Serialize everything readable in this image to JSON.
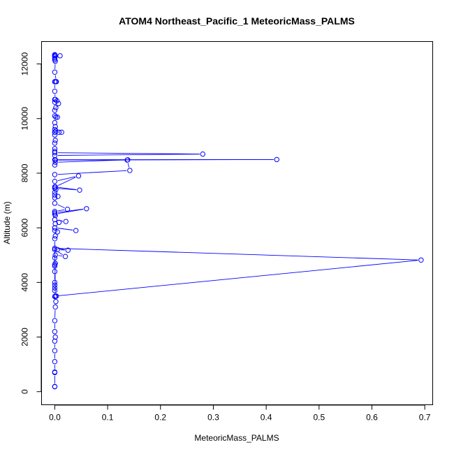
{
  "chart_data": {
    "type": "line",
    "title": "ATOM4 Northeast_Pacific_1 MeteoricMass_PALMS",
    "xlabel": "MeteoricMass_PALMS",
    "ylabel": "Altitude (m)",
    "xlim": [
      -0.025,
      0.715
    ],
    "ylim": [
      -480,
      12820
    ],
    "xticks": [
      0,
      0.1,
      0.2,
      0.3,
      0.4,
      0.5,
      0.6,
      0.7
    ],
    "xtick_labels": [
      "0.0",
      "0.1",
      "0.2",
      "0.3",
      "0.4",
      "0.5",
      "0.6",
      "0.7"
    ],
    "yticks": [
      0,
      2000,
      4000,
      6000,
      8000,
      10000,
      12000
    ],
    "ytick_labels": [
      "0",
      "2000",
      "4000",
      "6000",
      "8000",
      "10000",
      "12000"
    ],
    "color": "#0000ff",
    "marker": "open-circle",
    "grid": false,
    "legend": "none",
    "series": [
      {
        "x": [
          0.0,
          0.0,
          0.0,
          0.0,
          0.0,
          0.0,
          0.0,
          0.001,
          0.0,
          0.0,
          0.001,
          0.002,
          0.0,
          0.001,
          0.003,
          0.0,
          0.0,
          0.0,
          0.0,
          0.0,
          0.0,
          0.0,
          0.001,
          0.0,
          0.001,
          0.02,
          0.0,
          0.005,
          0.025,
          0.0,
          0.693,
          0.001,
          0.0,
          0.001,
          0.005,
          0.0,
          0.0,
          0.04,
          0.0,
          0.001,
          0.008,
          0.021,
          0.0,
          0.001,
          0.0,
          0.06,
          0.0,
          0.0,
          0.024,
          0.0,
          0.0,
          0.006,
          0.0,
          0.0,
          0.002,
          0.0,
          0.047,
          0.0,
          0.001,
          0.045,
          0.0,
          0.0,
          0.142,
          0.137,
          0.0,
          0.001,
          0.42,
          0.001,
          0.138,
          0.001,
          0.0,
          0.0,
          0.28,
          0.0,
          0.0,
          0.0,
          0.0,
          0.001,
          0.0,
          0.0,
          0.013,
          0.0,
          0.002,
          0.008,
          0.0,
          0.001,
          0.0,
          0.002,
          0.0,
          0.005,
          0.0,
          0.007,
          0.002,
          0.0,
          0.004,
          0.0,
          0.001,
          0.0,
          0.0,
          0.002,
          0.0,
          0.003,
          0.0,
          0.001,
          0.0,
          0.0,
          0.0,
          0.0,
          0.001,
          0.0,
          0.0,
          0.01,
          0.0,
          0.0
        ],
        "y": [
          180,
          190,
          700,
          720,
          1100,
          1500,
          1850,
          2000,
          2200,
          2600,
          3100,
          3300,
          3480,
          3500,
          3500,
          3700,
          3800,
          3900,
          4000,
          4400,
          4600,
          4650,
          4700,
          4900,
          5000,
          4950,
          5200,
          5200,
          5180,
          5250,
          4820,
          3500,
          5600,
          5700,
          5850,
          5900,
          6000,
          5900,
          6000,
          6150,
          6200,
          6230,
          6300,
          6450,
          6500,
          6700,
          6550,
          6600,
          6680,
          6900,
          7100,
          7150,
          7200,
          7300,
          7400,
          7450,
          7380,
          7500,
          7500,
          7900,
          7700,
          7950,
          8100,
          8480,
          8490,
          8480,
          8500,
          8490,
          8490,
          8400,
          8300,
          8650,
          8700,
          8750,
          8800,
          8900,
          9100,
          9200,
          9400,
          9500,
          9500,
          9500,
          9550,
          9500,
          9600,
          9700,
          9850,
          10050,
          10100,
          10050,
          10300,
          10550,
          10400,
          10600,
          10650,
          10700,
          10700,
          11000,
          11350,
          11350,
          11350,
          11350,
          11700,
          12100,
          12150,
          12200,
          12250,
          12300,
          12300,
          12300,
          12320,
          12300,
          12320,
          12340
        ]
      }
    ]
  }
}
